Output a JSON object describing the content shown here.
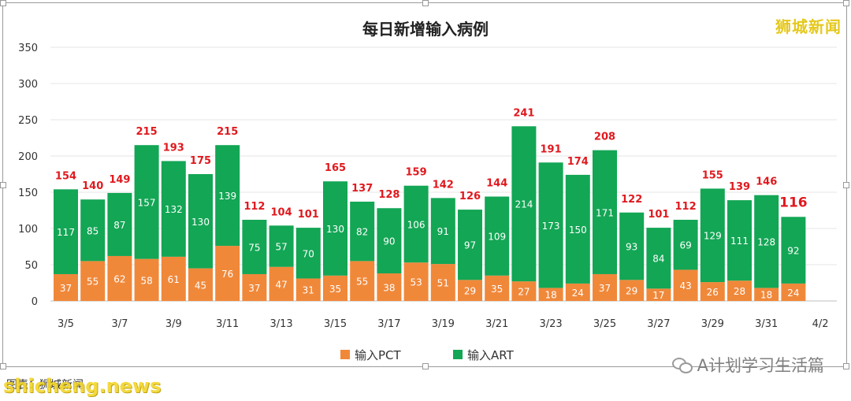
{
  "brand": "狮城新闻",
  "caption": "图表：狮城新闻",
  "watermark_account": "A计划学习生活篇",
  "watermark_site": "shicheng.news",
  "colors": {
    "pct": "#f0883a",
    "art": "#13a655",
    "total_label": "#e0191e",
    "grid": "#e6e6e6",
    "bar_label": "#ffffff"
  },
  "chart_data": {
    "type": "bar",
    "stacked": true,
    "title": "每日新增输入病例",
    "xlabel": "",
    "ylabel": "",
    "ylim": [
      0,
      350
    ],
    "yticks": [
      0,
      50,
      100,
      150,
      200,
      250,
      300,
      350
    ],
    "grid": true,
    "legend_position": "bottom",
    "categories": [
      "3/5",
      "3/6",
      "3/7",
      "3/8",
      "3/9",
      "3/10",
      "3/11",
      "3/12",
      "3/13",
      "3/14",
      "3/15",
      "3/16",
      "3/17",
      "3/18",
      "3/19",
      "3/20",
      "3/21",
      "3/22",
      "3/23",
      "3/24",
      "3/25",
      "3/26",
      "3/27",
      "3/28",
      "3/29",
      "3/30",
      "3/31",
      "4/1"
    ],
    "x_tick_labels": [
      "3/5",
      "3/7",
      "3/9",
      "3/11",
      "3/13",
      "3/15",
      "3/17",
      "3/19",
      "3/21",
      "3/23",
      "3/25",
      "3/27",
      "3/29",
      "3/31",
      "4/2"
    ],
    "series": [
      {
        "name": "输入PCT",
        "values": [
          37,
          55,
          62,
          58,
          61,
          45,
          76,
          37,
          47,
          31,
          35,
          55,
          38,
          53,
          51,
          29,
          35,
          27,
          18,
          24,
          37,
          29,
          17,
          43,
          26,
          28,
          18,
          24
        ]
      },
      {
        "name": "输入ART",
        "values": [
          117,
          85,
          87,
          157,
          132,
          130,
          139,
          75,
          57,
          70,
          130,
          82,
          90,
          106,
          91,
          97,
          109,
          214,
          173,
          150,
          171,
          93,
          84,
          69,
          129,
          111,
          128,
          92
        ]
      }
    ],
    "totals": [
      154,
      140,
      149,
      215,
      193,
      175,
      215,
      112,
      104,
      101,
      165,
      137,
      128,
      159,
      142,
      126,
      144,
      241,
      191,
      174,
      208,
      122,
      101,
      112,
      155,
      139,
      146,
      116
    ]
  }
}
